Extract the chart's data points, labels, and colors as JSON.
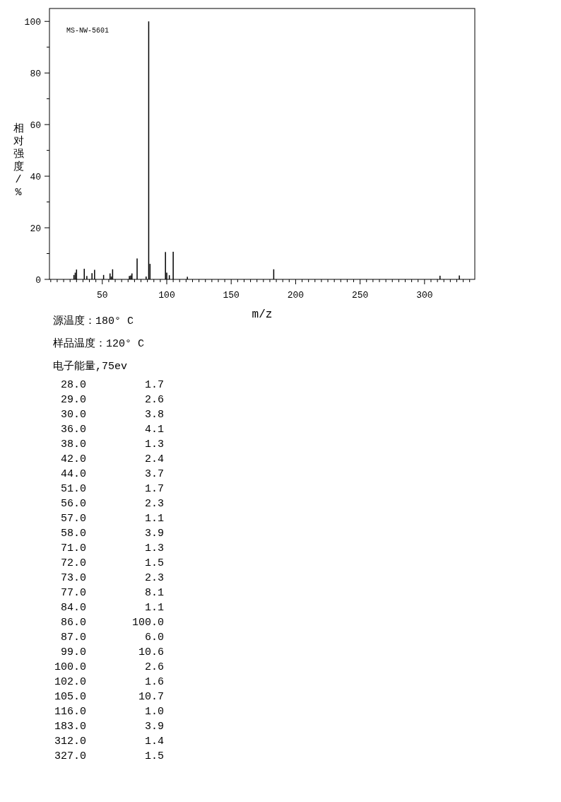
{
  "chart_data": {
    "type": "bar",
    "color": "#000000",
    "xlabel": "m/z",
    "ylabel": "相对强度/%",
    "annotations": [
      "MS-NW-5601",
      "源温度：180° C",
      "样品温度：120° C",
      "电子能量,75ev",
      "28.0 1.7",
      "29.0 2.6",
      "30.0 3.8",
      "36.0 4.1",
      "38.0 1.3",
      "42.0 2.4",
      "44.0 3.7",
      "51.0 1.7",
      "56.0 2.3",
      "57.0 1.1",
      "58.0 3.9",
      "71.0 1.3",
      "72.0 1.5",
      "73.0 2.3",
      "77.0 8.1",
      "84.0 1.1",
      "86.0 100.0",
      "87.0 6.0",
      "99.0 10.6",
      "100.0 2.6",
      "102.0 1.6",
      "105.0 10.7",
      "116.0 1.0",
      "183.0 3.9",
      "312.0 1.4",
      "327.0 1.5"
    ],
    "x": [
      28,
      29,
      30,
      36,
      38,
      42,
      44,
      51,
      56,
      57,
      58,
      71,
      72,
      73,
      77,
      84,
      86,
      87,
      99,
      100,
      102,
      105,
      116,
      183,
      312,
      327
    ],
    "values": [
      1.7,
      2.6,
      3.8,
      4.1,
      1.3,
      2.4,
      3.7,
      1.7,
      2.3,
      1.1,
      3.9,
      1.3,
      1.5,
      2.3,
      8.1,
      1.1,
      100.0,
      6.0,
      10.6,
      2.6,
      1.6,
      10.7,
      1.0,
      3.9,
      1.4,
      1.5
    ],
    "xlim": [
      9,
      339
    ],
    "ylim": [
      0,
      105
    ],
    "xticks": [
      {
        "value": 10,
        "label": null
      },
      {
        "value": 15,
        "label": null
      },
      {
        "value": 20,
        "label": null
      },
      {
        "value": 25,
        "label": null
      },
      {
        "value": 30,
        "label": null
      },
      {
        "value": 35,
        "label": null
      },
      {
        "value": 40,
        "label": null
      },
      {
        "value": 45,
        "label": null
      },
      50,
      {
        "value": 55,
        "label": null
      },
      {
        "value": 60,
        "label": null
      },
      {
        "value": 65,
        "label": null
      },
      {
        "value": 70,
        "label": null
      },
      {
        "value": 75,
        "label": null
      },
      {
        "value": 80,
        "label": null
      },
      {
        "value": 85,
        "label": null
      },
      {
        "value": 90,
        "label": null
      },
      {
        "value": 95,
        "label": null
      },
      100,
      {
        "value": 105,
        "label": null
      },
      {
        "value": 110,
        "label": null
      },
      {
        "value": 115,
        "label": null
      },
      {
        "value": 120,
        "label": null
      },
      {
        "value": 125,
        "label": null
      },
      {
        "value": 130,
        "label": null
      },
      {
        "value": 135,
        "label": null
      },
      {
        "value": 140,
        "label": null
      },
      {
        "value": 145,
        "label": null
      },
      150,
      {
        "value": 155,
        "label": null
      },
      {
        "value": 160,
        "label": null
      },
      {
        "value": 165,
        "label": null
      },
      {
        "value": 170,
        "label": null
      },
      {
        "value": 175,
        "label": null
      },
      {
        "value": 180,
        "label": null
      },
      {
        "value": 185,
        "label": null
      },
      {
        "value": 190,
        "label": null
      },
      {
        "value": 195,
        "label": null
      },
      200,
      {
        "value": 205,
        "label": null
      },
      {
        "value": 210,
        "label": null
      },
      {
        "value": 215,
        "label": null
      },
      {
        "value": 220,
        "label": null
      },
      {
        "value": 225,
        "label": null
      },
      {
        "value": 230,
        "label": null
      },
      {
        "value": 235,
        "label": null
      },
      {
        "value": 240,
        "label": null
      },
      {
        "value": 245,
        "label": null
      },
      250,
      {
        "value": 255,
        "label": null
      },
      {
        "value": 260,
        "label": null
      },
      {
        "value": 265,
        "label": null
      },
      {
        "value": 270,
        "label": null
      },
      {
        "value": 275,
        "label": null
      },
      {
        "value": 280,
        "label": null
      },
      {
        "value": 285,
        "label": null
      },
      {
        "value": 290,
        "label": null
      },
      {
        "value": 295,
        "label": null
      },
      300,
      {
        "value": 305,
        "label": null
      },
      {
        "value": 310,
        "label": null
      },
      {
        "value": 315,
        "label": null
      },
      {
        "value": 320,
        "label": null
      },
      {
        "value": 325,
        "label": null
      },
      {
        "value": 330,
        "label": null
      },
      {
        "value": 335,
        "label": null
      }
    ],
    "yticks": [
      0,
      {
        "value": 10,
        "label": null
      },
      20,
      {
        "value": 30,
        "label": null
      },
      40,
      {
        "value": 50,
        "label": null
      },
      60,
      {
        "value": 70,
        "label": null
      },
      80,
      {
        "value": 90,
        "label": null
      },
      100
    ]
  }
}
